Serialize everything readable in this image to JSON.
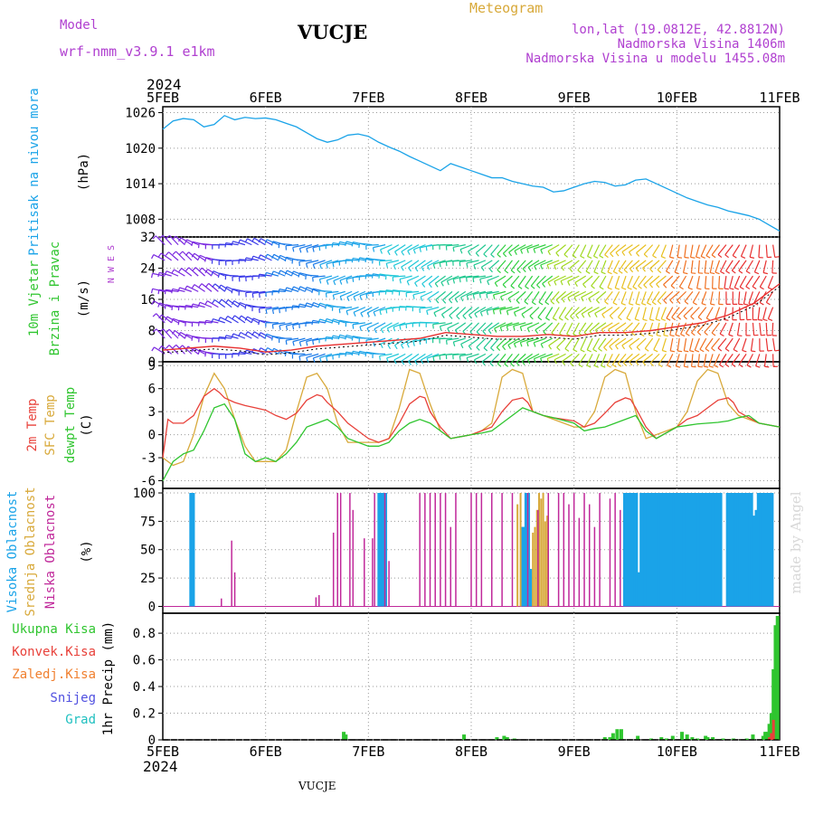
{
  "header": {
    "model_label": "Model",
    "model_name": "wrf-nmm_v3.9.1 e1km",
    "title": "VUCJE",
    "meteogram_label": "Meteogram",
    "lonlat": "lon,lat (19.0812E, 42.8812N)",
    "altitude": "Nadmorska Visina 1406m",
    "model_altitude": "Nadmorska Visina u modelu 1455.08m",
    "year_top": "2024",
    "year_bottom": "2024",
    "footer_station": "VUCJE",
    "credit": "made by Angel"
  },
  "colors": {
    "pressure": "#1aa3e8",
    "temp2m": "#e8413a",
    "sfc_temp": "#d8a93a",
    "dewpt": "#2fc52f",
    "high_cloud": "#1aa3e8",
    "mid_cloud": "#d8a93a",
    "low_cloud": "#c0289a",
    "precip_total": "#2fc52f",
    "precip_conv": "#e8413a",
    "freezing": "#f08030",
    "snow": "#5050e0",
    "hail": "#20c0c0",
    "model_purple": "#b040d0"
  },
  "x_axis": {
    "ticks": [
      "5FEB",
      "6FEB",
      "7FEB",
      "8FEB",
      "9FEB",
      "10FEB",
      "11FEB"
    ],
    "range_days": [
      0,
      6
    ]
  },
  "chart_data": [
    {
      "type": "line",
      "id": "pressure",
      "panel_labels": [
        "Pritisak na nivou mora",
        "(hPa)"
      ],
      "yticks": [
        "1008",
        "1014",
        "1020",
        "1026"
      ],
      "ylim": [
        1005,
        1027
      ],
      "series": [
        {
          "x": [
            0,
            0.1,
            0.2,
            0.3,
            0.4,
            0.5,
            0.6,
            0.7,
            0.8,
            0.9,
            1.0,
            1.1,
            1.2,
            1.3,
            1.4,
            1.5,
            1.6,
            1.7,
            1.8,
            1.9,
            2.0,
            2.1,
            2.2,
            2.3,
            2.4,
            2.5,
            2.6,
            2.7,
            2.8,
            2.9,
            3.0,
            3.1,
            3.2,
            3.3,
            3.4,
            3.5,
            3.6,
            3.7,
            3.8,
            3.9,
            4.0,
            4.1,
            4.2,
            4.3,
            4.4,
            4.5,
            4.6,
            4.7,
            4.8,
            4.9,
            5.0,
            5.1,
            5.2,
            5.3,
            5.4,
            5.5,
            5.6,
            5.7,
            5.8,
            5.9,
            6.0
          ],
          "values": [
            1023.2,
            1024.6,
            1025.0,
            1024.8,
            1023.6,
            1024.0,
            1025.5,
            1024.8,
            1025.2,
            1025.0,
            1025.1,
            1024.8,
            1024.2,
            1023.6,
            1022.6,
            1021.6,
            1021.0,
            1021.4,
            1022.2,
            1022.4,
            1022.0,
            1021.0,
            1020.2,
            1019.5,
            1018.6,
            1017.8,
            1017.0,
            1016.2,
            1017.4,
            1016.8,
            1016.2,
            1015.6,
            1015.0,
            1015.0,
            1014.4,
            1014.0,
            1013.6,
            1013.4,
            1012.6,
            1012.8,
            1013.4,
            1014.0,
            1014.4,
            1014.2,
            1013.6,
            1013.8,
            1014.6,
            1014.8,
            1014.0,
            1013.2,
            1012.4,
            1011.6,
            1011.0,
            1010.4,
            1010.0,
            1009.4,
            1009.0,
            1008.6,
            1008.0,
            1007.0,
            1006.0
          ]
        }
      ]
    },
    {
      "type": "line",
      "id": "wind",
      "panel_labels": [
        "10m Vjetar",
        "Brzina i Pravac",
        "(m/s)"
      ],
      "compass_label": "N W E S",
      "yticks": [
        "0",
        "8",
        "16",
        "24",
        "32"
      ],
      "ylim": [
        0,
        32
      ],
      "series": [
        {
          "name": "brzina",
          "x": [
            0,
            0.25,
            0.5,
            0.75,
            1.0,
            1.25,
            1.5,
            1.75,
            2.0,
            2.25,
            2.5,
            2.75,
            3.0,
            3.25,
            3.5,
            3.75,
            4.0,
            4.25,
            4.5,
            4.75,
            5.0,
            5.25,
            5.5,
            5.75,
            6.0
          ],
          "values": [
            3,
            3.5,
            4,
            3.5,
            2.5,
            3,
            4,
            4.5,
            5,
            5.5,
            6,
            7.5,
            7,
            6.5,
            6.5,
            7,
            6.5,
            7.5,
            7.5,
            8,
            9,
            10,
            12,
            15,
            20
          ]
        }
      ],
      "direction_deg_start": 300,
      "direction_deg_end": 190
    },
    {
      "type": "line",
      "id": "temperature",
      "panel_labels": [
        "2m Temp",
        "SFC Temp",
        "dewpt Temp",
        "(C)"
      ],
      "yticks": [
        "-6",
        "-3",
        "0",
        "3",
        "6",
        "9"
      ],
      "ylim": [
        -7,
        9.5
      ],
      "series": [
        {
          "name": "2m Temp",
          "x": [
            0,
            0.05,
            0.1,
            0.2,
            0.3,
            0.4,
            0.5,
            0.55,
            0.6,
            0.7,
            0.8,
            0.9,
            1.0,
            1.1,
            1.2,
            1.3,
            1.4,
            1.5,
            1.55,
            1.6,
            1.7,
            1.8,
            2.0,
            2.1,
            2.2,
            2.3,
            2.4,
            2.5,
            2.55,
            2.6,
            2.7,
            2.8,
            3.0,
            3.1,
            3.2,
            3.3,
            3.4,
            3.5,
            3.55,
            3.6,
            3.7,
            3.8,
            4.0,
            4.1,
            4.2,
            4.3,
            4.4,
            4.5,
            4.55,
            4.6,
            4.7,
            4.8,
            5.0,
            5.1,
            5.2,
            5.3,
            5.4,
            5.5,
            5.55,
            5.6,
            5.7,
            5.8,
            6.0
          ],
          "values": [
            -3,
            2,
            1.5,
            1.5,
            2.5,
            5.0,
            6.0,
            5.5,
            4.8,
            4.2,
            3.8,
            3.5,
            3.2,
            2.5,
            2.0,
            2.8,
            4.5,
            5.2,
            5.0,
            4.2,
            3.0,
            1.5,
            -0.5,
            -1.0,
            -0.5,
            1.5,
            4.0,
            5.0,
            4.8,
            3.0,
            1.0,
            -0.5,
            0.0,
            0.5,
            1.0,
            3.0,
            4.5,
            4.8,
            4.2,
            3.0,
            2.5,
            2.2,
            1.8,
            1.0,
            1.5,
            2.8,
            4.2,
            4.8,
            4.6,
            3.5,
            1.0,
            -0.5,
            1.0,
            2.0,
            2.5,
            3.5,
            4.5,
            4.8,
            4.2,
            3.0,
            2.2,
            1.5,
            1.0
          ]
        },
        {
          "name": "SFC Temp",
          "x": [
            0,
            0.1,
            0.2,
            0.3,
            0.4,
            0.5,
            0.6,
            0.7,
            0.8,
            0.9,
            1.0,
            1.1,
            1.2,
            1.3,
            1.4,
            1.5,
            1.6,
            1.7,
            1.8,
            2.0,
            2.1,
            2.2,
            2.3,
            2.4,
            2.5,
            2.6,
            2.7,
            2.8,
            3.0,
            3.1,
            3.2,
            3.3,
            3.4,
            3.5,
            3.6,
            3.7,
            3.8,
            4.0,
            4.1,
            4.2,
            4.3,
            4.4,
            4.5,
            4.6,
            4.7,
            4.8,
            5.0,
            5.1,
            5.2,
            5.3,
            5.4,
            5.5,
            5.6,
            5.7,
            5.8,
            6.0
          ],
          "values": [
            -3,
            -4,
            -3.5,
            0,
            5,
            8,
            6,
            2,
            -1.5,
            -3.5,
            -3.5,
            -3.5,
            -2.0,
            3,
            7.5,
            8.0,
            6,
            1.5,
            -1.0,
            -1.0,
            -1.0,
            -0.5,
            3.5,
            8.5,
            8.0,
            4,
            0.5,
            -0.5,
            0.0,
            0.5,
            1.5,
            7.5,
            8.5,
            8.0,
            3,
            2.5,
            2.0,
            1.0,
            1.0,
            3,
            7.5,
            8.5,
            8.0,
            3,
            -0.5,
            0.0,
            1.0,
            3,
            7,
            8.5,
            8.0,
            4,
            2.5,
            2.0,
            1.5,
            1.0
          ]
        },
        {
          "name": "dewpt Temp",
          "x": [
            0,
            0.1,
            0.2,
            0.3,
            0.4,
            0.5,
            0.6,
            0.7,
            0.8,
            0.9,
            1.0,
            1.1,
            1.2,
            1.3,
            1.4,
            1.5,
            1.6,
            1.7,
            1.8,
            2.0,
            2.1,
            2.2,
            2.3,
            2.4,
            2.5,
            2.6,
            2.7,
            2.8,
            3.0,
            3.1,
            3.2,
            3.3,
            3.4,
            3.5,
            3.6,
            3.7,
            3.8,
            4.0,
            4.1,
            4.2,
            4.3,
            4.4,
            4.5,
            4.6,
            4.7,
            4.8,
            5.0,
            5.1,
            5.2,
            5.3,
            5.4,
            5.5,
            5.6,
            5.7,
            5.8,
            6.0
          ],
          "values": [
            -6,
            -3.5,
            -2.5,
            -2.0,
            0.5,
            3.5,
            4.0,
            2.0,
            -2.5,
            -3.5,
            -3.0,
            -3.5,
            -2.5,
            -1.0,
            1.0,
            1.5,
            2.0,
            1.0,
            -0.5,
            -1.5,
            -1.5,
            -1.0,
            0.5,
            1.5,
            2.0,
            1.5,
            0.5,
            -0.5,
            0.0,
            0.2,
            0.5,
            1.5,
            2.5,
            3.5,
            3.0,
            2.5,
            2.2,
            1.5,
            0.5,
            0.8,
            1.0,
            1.5,
            2.0,
            2.5,
            0.5,
            -0.5,
            1.0,
            1.2,
            1.4,
            1.5,
            1.6,
            1.8,
            2.2,
            2.5,
            1.5,
            1.0
          ]
        }
      ]
    },
    {
      "type": "bar",
      "id": "clouds",
      "panel_labels": [
        "Visoka Oblacnost",
        "Srednja Oblacnost",
        "Niska Oblacnost",
        "(%)"
      ],
      "yticks": [
        "0",
        "25",
        "50",
        "75",
        "100"
      ],
      "ylim": [
        0,
        100
      ],
      "series": [
        {
          "name": "Visoka Oblacnost",
          "x": [
            0.28,
            0.29,
            2.11,
            2.12,
            2.13,
            2.14,
            2.15,
            2.16,
            3.5,
            3.51,
            3.52,
            3.53,
            3.54,
            3.55,
            3.56,
            3.57,
            4.5,
            4.52,
            4.54,
            4.56,
            4.58,
            4.6,
            4.62,
            4.64,
            4.66,
            4.7,
            4.72,
            4.74,
            4.76,
            4.78,
            4.8,
            4.82,
            4.84,
            4.86,
            4.88,
            4.9,
            4.92,
            4.94,
            4.96,
            4.98,
            5.0,
            5.02,
            5.04,
            5.06,
            5.08,
            5.1,
            5.12,
            5.14,
            5.16,
            5.18,
            5.2,
            5.22,
            5.24,
            5.26,
            5.3,
            5.32,
            5.34,
            5.36,
            5.38,
            5.4,
            5.42,
            5.5,
            5.52,
            5.54,
            5.56,
            5.58,
            5.6,
            5.62,
            5.64,
            5.66,
            5.68,
            5.7,
            5.72,
            5.74,
            5.76,
            5.78,
            5.8,
            5.82,
            5.84,
            5.86,
            5.88,
            5.9,
            5.92
          ],
          "values": [
            100,
            100,
            100,
            100,
            100,
            100,
            100,
            100,
            70,
            70,
            40,
            40,
            100,
            100,
            33,
            33,
            100,
            100,
            100,
            100,
            100,
            100,
            30,
            30,
            100,
            100,
            100,
            100,
            100,
            100,
            100,
            100,
            100,
            100,
            100,
            100,
            100,
            100,
            100,
            100,
            100,
            100,
            100,
            100,
            100,
            100,
            100,
            100,
            100,
            100,
            100,
            100,
            100,
            100,
            100,
            100,
            100,
            100,
            100,
            100,
            100,
            100,
            100,
            100,
            100,
            100,
            100,
            100,
            100,
            100,
            100,
            100,
            100,
            70,
            80,
            85,
            100,
            100,
            100,
            100,
            100,
            100,
            100
          ]
        },
        {
          "name": "Srednja Oblacnost",
          "x": [
            3.45,
            3.48,
            3.6,
            3.62,
            3.64,
            3.66,
            3.68,
            3.7,
            3.72,
            3.74
          ],
          "values": [
            90,
            100,
            65,
            70,
            85,
            100,
            95,
            100,
            75,
            80
          ]
        },
        {
          "name": "Niska Oblacnost",
          "x": [
            0.57,
            0.67,
            0.7,
            1.49,
            1.52,
            1.66,
            1.7,
            1.73,
            1.82,
            1.85,
            1.96,
            2.04,
            2.06,
            2.16,
            2.2,
            2.5,
            2.55,
            2.6,
            2.65,
            2.7,
            2.75,
            2.8,
            2.85,
            3.0,
            3.05,
            3.1,
            3.2,
            3.3,
            3.4,
            3.55,
            3.65,
            3.75,
            3.85,
            3.9,
            3.95,
            4.0,
            4.05,
            4.1,
            4.15,
            4.2,
            4.25,
            4.35,
            4.4,
            4.45
          ],
          "values": [
            7,
            58,
            30,
            8,
            10,
            65,
            100,
            100,
            100,
            85,
            60,
            60,
            100,
            100,
            40,
            100,
            100,
            100,
            100,
            100,
            100,
            70,
            100,
            100,
            100,
            100,
            100,
            100,
            100,
            100,
            85,
            100,
            100,
            100,
            90,
            100,
            78,
            100,
            90,
            70,
            100,
            95,
            100,
            85
          ]
        }
      ]
    },
    {
      "type": "bar",
      "id": "precip",
      "panel_labels": [
        "Ukupna Kisa",
        "Konvek.Kisa",
        "Zaledj.Kisa",
        "Snijeg",
        "Grad",
        "1hr Precip (mm)"
      ],
      "yticks": [
        "0",
        "0.2",
        "0.4",
        "0.6",
        "0.8"
      ],
      "ylim": [
        0,
        0.95
      ],
      "series": [
        {
          "name": "Ukupna Kisa",
          "x": [
            1.76,
            1.78,
            2.93,
            3.25,
            3.32,
            3.35,
            3.42,
            4.3,
            4.35,
            4.38,
            4.42,
            4.46,
            4.62,
            4.75,
            4.85,
            4.9,
            4.96,
            5.05,
            5.1,
            5.15,
            5.2,
            5.28,
            5.3,
            5.35,
            5.45,
            5.55,
            5.68,
            5.74,
            5.84,
            5.86,
            5.88,
            5.9,
            5.92,
            5.94,
            5.96,
            5.98
          ],
          "values": [
            0.06,
            0.04,
            0.04,
            0.02,
            0.03,
            0.02,
            0.01,
            0.02,
            0.02,
            0.05,
            0.08,
            0.08,
            0.03,
            0.01,
            0.02,
            0.01,
            0.03,
            0.06,
            0.04,
            0.02,
            0.01,
            0.03,
            0.02,
            0.02,
            0.01,
            0.01,
            0.01,
            0.04,
            0.03,
            0.06,
            0.06,
            0.12,
            0.2,
            0.53,
            0.86,
            0.93
          ]
        },
        {
          "name": "Konvek.Kisa",
          "x": [
            5.9,
            5.92,
            5.94
          ],
          "values": [
            0.02,
            0.05,
            0.15
          ]
        }
      ]
    }
  ]
}
